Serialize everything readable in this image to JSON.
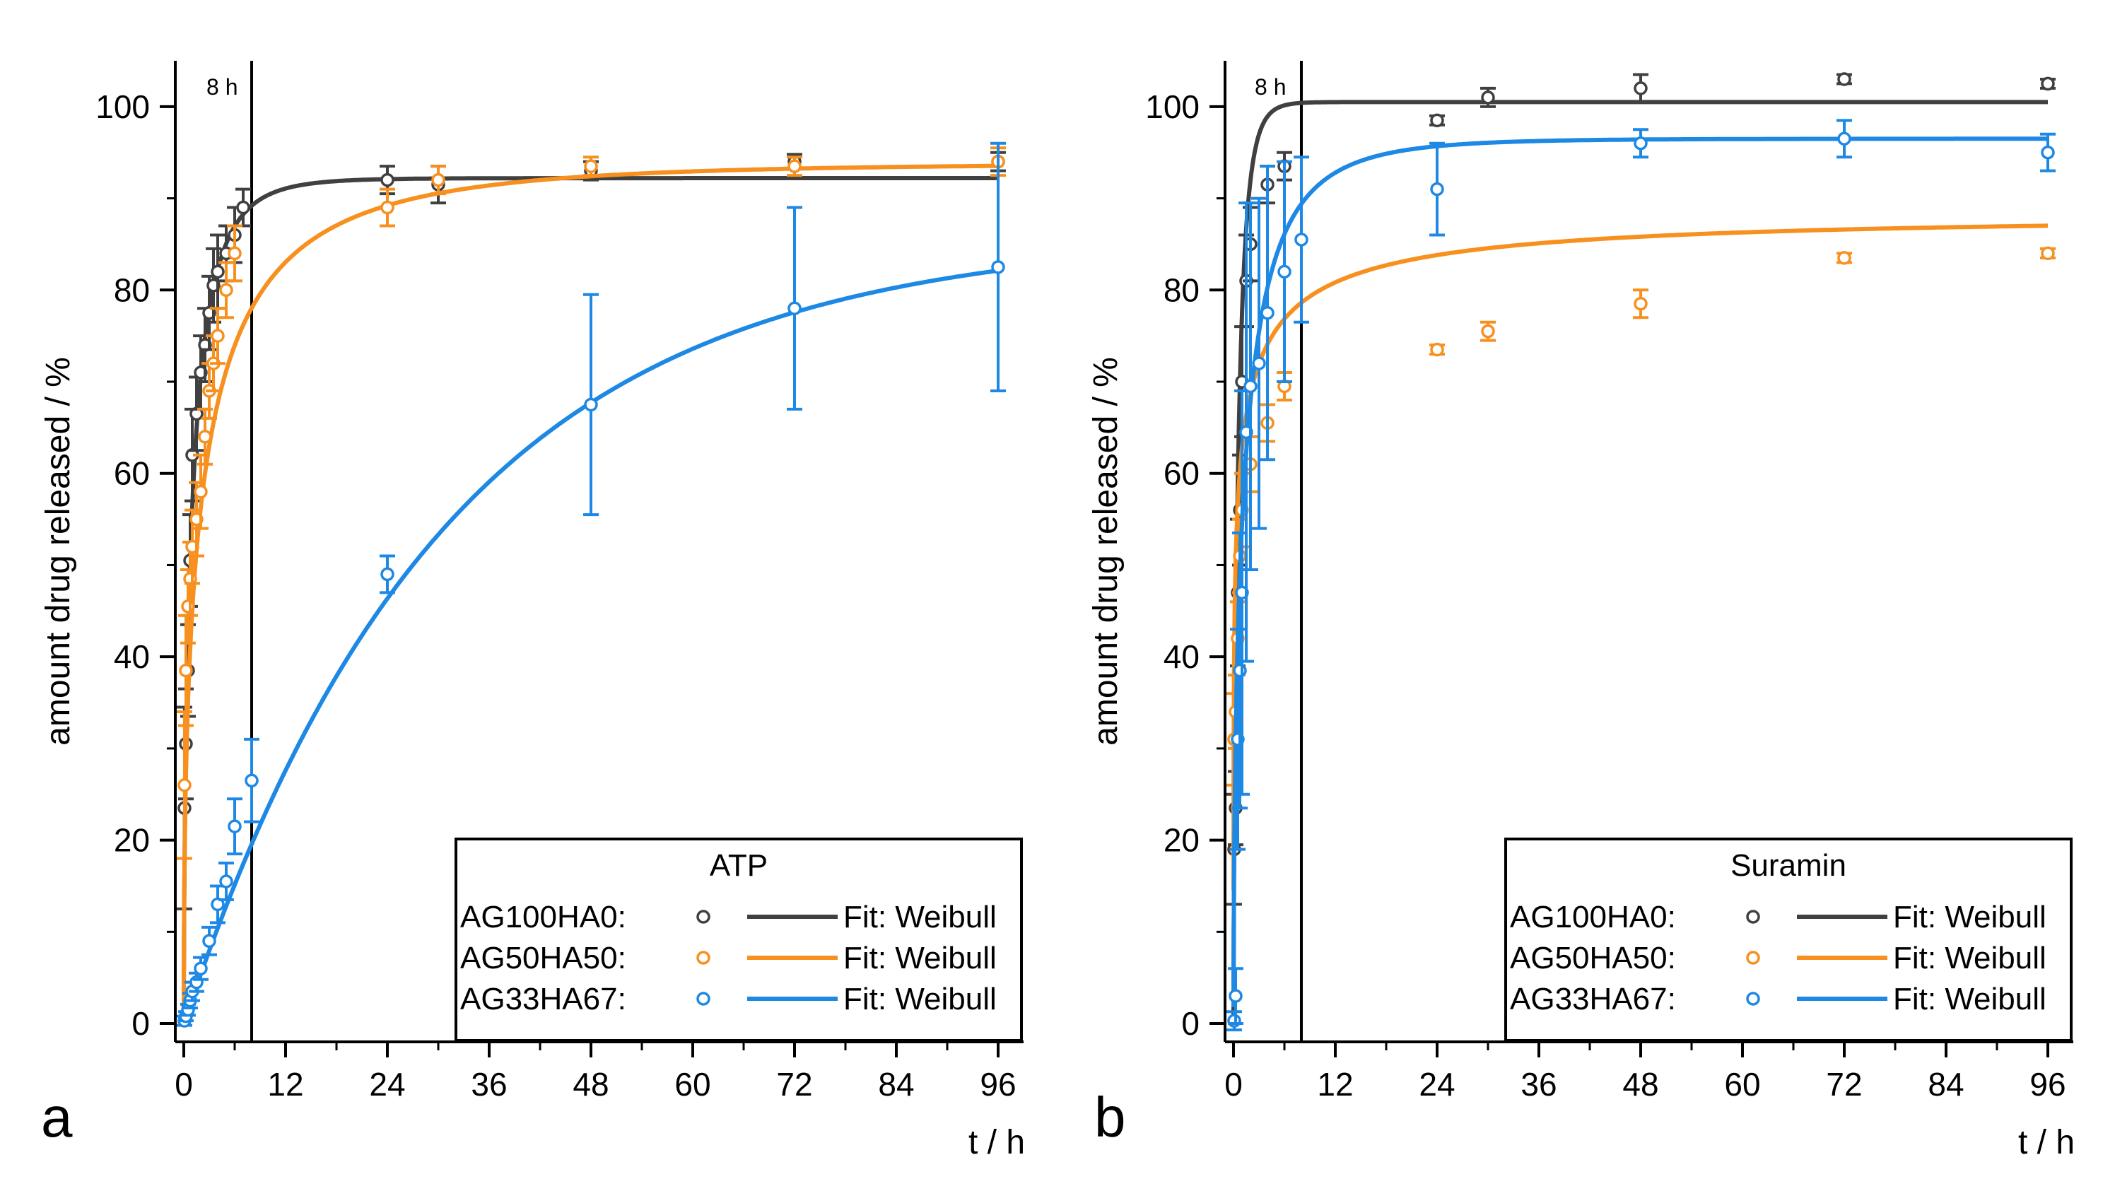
{
  "chart_data": [
    {
      "type": "scatter",
      "panel_label": "a",
      "title": "ATP",
      "xlabel": "t / h",
      "ylabel": "amount drug released / %",
      "xlim": [
        -1,
        99
      ],
      "ylim": [
        -2,
        105
      ],
      "xticks": [
        0,
        12,
        24,
        36,
        48,
        60,
        72,
        84,
        96
      ],
      "yticks": [
        0,
        20,
        40,
        60,
        80,
        100
      ],
      "vline": {
        "x": 8,
        "label": "8 h"
      },
      "legend_position": "bottom-right",
      "series": [
        {
          "name": "AG100HA0:",
          "fit_label": "Fit: Weibull",
          "color": "#404040",
          "fit": {
            "ymax": 92.2,
            "tau": 1.1,
            "beta": 0.62
          },
          "points": [
            {
              "x": 0.08,
              "y": 23.5,
              "err": 11
            },
            {
              "x": 0.25,
              "y": 30.5,
              "err": 6
            },
            {
              "x": 0.5,
              "y": 38.5,
              "err": 5
            },
            {
              "x": 0.75,
              "y": 50.5,
              "err": 5
            },
            {
              "x": 1,
              "y": 62,
              "err": 5
            },
            {
              "x": 1.5,
              "y": 66.5,
              "err": 4
            },
            {
              "x": 2,
              "y": 71,
              "err": 4
            },
            {
              "x": 2.5,
              "y": 74,
              "err": 4
            },
            {
              "x": 3,
              "y": 77.5,
              "err": 4
            },
            {
              "x": 3.5,
              "y": 80.5,
              "err": 4
            },
            {
              "x": 4,
              "y": 82,
              "err": 4
            },
            {
              "x": 5,
              "y": 84,
              "err": 3
            },
            {
              "x": 6,
              "y": 86,
              "err": 3
            },
            {
              "x": 7,
              "y": 89,
              "err": 2
            },
            {
              "x": 24,
              "y": 92,
              "err": 1.5
            },
            {
              "x": 30,
              "y": 91.5,
              "err": 2
            },
            {
              "x": 48,
              "y": 93,
              "err": 1
            },
            {
              "x": 72,
              "y": 94,
              "err": 0.8
            },
            {
              "x": 96,
              "y": 94,
              "err": 1
            }
          ]
        },
        {
          "name": "AG50HA50:",
          "fit_label": "Fit: Weibull",
          "color": "#f7901e",
          "fit": {
            "ymax": 93.8,
            "tau": 2.4,
            "beta": 0.48
          },
          "points": [
            {
              "x": 0.08,
              "y": 26,
              "err": 8
            },
            {
              "x": 0.25,
              "y": 38.5,
              "err": 6
            },
            {
              "x": 0.5,
              "y": 45.5,
              "err": 4
            },
            {
              "x": 0.75,
              "y": 48.5,
              "err": 4
            },
            {
              "x": 1,
              "y": 52,
              "err": 4
            },
            {
              "x": 1.5,
              "y": 55,
              "err": 4
            },
            {
              "x": 2,
              "y": 58,
              "err": 4
            },
            {
              "x": 2.5,
              "y": 64,
              "err": 3
            },
            {
              "x": 3,
              "y": 69,
              "err": 3
            },
            {
              "x": 3.5,
              "y": 72,
              "err": 3
            },
            {
              "x": 4,
              "y": 75,
              "err": 3
            },
            {
              "x": 5,
              "y": 80,
              "err": 3
            },
            {
              "x": 6,
              "y": 84,
              "err": 3
            },
            {
              "x": 24,
              "y": 89,
              "err": 2
            },
            {
              "x": 30,
              "y": 92,
              "err": 1.5
            },
            {
              "x": 48,
              "y": 93.5,
              "err": 1
            },
            {
              "x": 72,
              "y": 93.5,
              "err": 1
            },
            {
              "x": 96,
              "y": 94,
              "err": 1.5
            }
          ]
        },
        {
          "name": "AG33HA67:",
          "fit_label": "Fit: Weibull",
          "color": "#1e88e5",
          "fit": {
            "ymax": 86,
            "tau": 31,
            "beta": 1.0
          },
          "points": [
            {
              "x": 0.08,
              "y": 0.3,
              "err": 0.5
            },
            {
              "x": 0.25,
              "y": 0.8,
              "err": 0.5
            },
            {
              "x": 0.5,
              "y": 1.5,
              "err": 0.6
            },
            {
              "x": 0.75,
              "y": 2.5,
              "err": 0.8
            },
            {
              "x": 1,
              "y": 3.5,
              "err": 1
            },
            {
              "x": 1.5,
              "y": 4.5,
              "err": 1
            },
            {
              "x": 2,
              "y": 6,
              "err": 1.2
            },
            {
              "x": 3,
              "y": 9,
              "err": 1.5
            },
            {
              "x": 4,
              "y": 13,
              "err": 2
            },
            {
              "x": 5,
              "y": 15.5,
              "err": 2
            },
            {
              "x": 6,
              "y": 21.5,
              "err": 3
            },
            {
              "x": 8,
              "y": 26.5,
              "err": 4.5
            },
            {
              "x": 24,
              "y": 49,
              "err": 2
            },
            {
              "x": 48,
              "y": 67.5,
              "err": 12
            },
            {
              "x": 72,
              "y": 78,
              "err": 11
            },
            {
              "x": 96,
              "y": 82.5,
              "err": 13.5
            }
          ]
        }
      ]
    },
    {
      "type": "scatter",
      "panel_label": "b",
      "title": "Suramin",
      "xlabel": "t / h",
      "ylabel": "amount drug released / %",
      "xlim": [
        -1,
        99
      ],
      "ylim": [
        -2,
        105
      ],
      "xticks": [
        0,
        12,
        24,
        36,
        48,
        60,
        72,
        84,
        96
      ],
      "yticks": [
        0,
        20,
        40,
        60,
        80,
        100
      ],
      "vline": {
        "x": 8,
        "label": "8 h"
      },
      "legend_position": "bottom-right",
      "series": [
        {
          "name": "AG100HA0:",
          "fit_label": "Fit: Weibull",
          "color": "#404040",
          "fit": {
            "ymax": 100.5,
            "tau": 0.6,
            "beta": 0.75
          },
          "points": [
            {
              "x": 0.08,
              "y": 19,
              "err": 6
            },
            {
              "x": 0.25,
              "y": 23.5,
              "err": 4
            },
            {
              "x": 0.5,
              "y": 47,
              "err": 8
            },
            {
              "x": 0.75,
              "y": 56,
              "err": 6
            },
            {
              "x": 1,
              "y": 70,
              "err": 6
            },
            {
              "x": 1.5,
              "y": 81,
              "err": 5
            },
            {
              "x": 2,
              "y": 85,
              "err": 4
            },
            {
              "x": 4,
              "y": 91.5,
              "err": 2
            },
            {
              "x": 6,
              "y": 93.5,
              "err": 1.5
            },
            {
              "x": 24,
              "y": 98.5,
              "err": 0.5
            },
            {
              "x": 30,
              "y": 101,
              "err": 1
            },
            {
              "x": 48,
              "y": 102,
              "err": 1.5
            },
            {
              "x": 72,
              "y": 103,
              "err": 0.5
            },
            {
              "x": 96,
              "y": 102.5,
              "err": 0.5
            }
          ]
        },
        {
          "name": "AG50HA50:",
          "fit_label": "Fit: Weibull",
          "color": "#f7901e",
          "fit": {
            "ymax": 88,
            "tau": 0.45,
            "beta": 0.28
          },
          "points": [
            {
              "x": 0.08,
              "y": 31,
              "err": 5
            },
            {
              "x": 0.25,
              "y": 34,
              "err": 4
            },
            {
              "x": 0.5,
              "y": 42,
              "err": 4
            },
            {
              "x": 0.75,
              "y": 51,
              "err": 4
            },
            {
              "x": 1,
              "y": 56,
              "err": 4
            },
            {
              "x": 2,
              "y": 61,
              "err": 3
            },
            {
              "x": 4,
              "y": 65.5,
              "err": 2
            },
            {
              "x": 6,
              "y": 69.5,
              "err": 1.5
            },
            {
              "x": 24,
              "y": 73.5,
              "err": 0.5
            },
            {
              "x": 30,
              "y": 75.5,
              "err": 1
            },
            {
              "x": 48,
              "y": 78.5,
              "err": 1.5
            },
            {
              "x": 72,
              "y": 83.5,
              "err": 0.5
            },
            {
              "x": 96,
              "y": 84,
              "err": 0.5
            }
          ]
        },
        {
          "name": "AG33HA67:",
          "fit_label": "Fit: Weibull",
          "color": "#1e88e5",
          "fit": {
            "ymax": 96.5,
            "tau": 1.4,
            "beta": 0.55
          },
          "points": [
            {
              "x": 0.08,
              "y": 0.3,
              "err": 1
            },
            {
              "x": 0.25,
              "y": 3,
              "err": 3
            },
            {
              "x": 0.5,
              "y": 31,
              "err": 12
            },
            {
              "x": 0.75,
              "y": 38.5,
              "err": 15
            },
            {
              "x": 1,
              "y": 47,
              "err": 22
            },
            {
              "x": 1.5,
              "y": 64.5,
              "err": 25
            },
            {
              "x": 2,
              "y": 69.5,
              "err": 20
            },
            {
              "x": 3,
              "y": 72,
              "err": 18
            },
            {
              "x": 4,
              "y": 77.5,
              "err": 16
            },
            {
              "x": 6,
              "y": 82,
              "err": 12
            },
            {
              "x": 8,
              "y": 85.5,
              "err": 9
            },
            {
              "x": 24,
              "y": 91,
              "err": 5
            },
            {
              "x": 48,
              "y": 96,
              "err": 1.5
            },
            {
              "x": 72,
              "y": 96.5,
              "err": 2
            },
            {
              "x": 96,
              "y": 95,
              "err": 2
            }
          ]
        }
      ]
    }
  ]
}
